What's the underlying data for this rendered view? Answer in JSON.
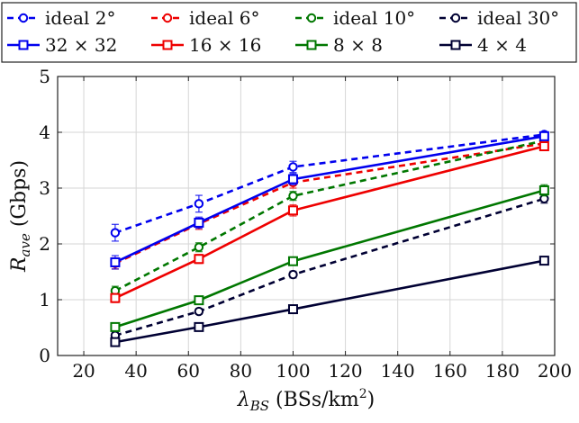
{
  "chart_data": {
    "type": "line",
    "xlabel": {
      "main": "λ",
      "sub": "BS",
      "unit_prefix": "(BSs/km",
      "sup": "2",
      "unit_suffix": ")"
    },
    "ylabel": {
      "main": "R",
      "sub": "ave",
      "unit": "(Gbps)"
    },
    "xlim": [
      10,
      200
    ],
    "ylim": [
      0,
      5
    ],
    "xticks": [
      20,
      40,
      60,
      80,
      100,
      120,
      140,
      160,
      180,
      200
    ],
    "yticks": [
      0,
      1,
      2,
      3,
      4,
      5
    ],
    "grid": true,
    "legend_position": "top",
    "x": [
      32,
      64,
      100,
      196
    ],
    "series": [
      {
        "name": "ideal 2°",
        "color": "#0000ee",
        "style": "dashed",
        "marker": "circle",
        "values": [
          2.2,
          2.72,
          3.38,
          3.96
        ],
        "err": [
          0.15,
          0.15,
          0.1,
          0.05
        ]
      },
      {
        "name": "ideal 6°",
        "color": "#ee0000",
        "style": "dashed",
        "marker": "circle",
        "values": [
          1.65,
          2.36,
          3.1,
          3.8
        ],
        "err": [
          0.1,
          0.1,
          0.1,
          0.05
        ]
      },
      {
        "name": "ideal 10°",
        "color": "#007700",
        "style": "dashed",
        "marker": "circle",
        "values": [
          1.16,
          1.94,
          2.86,
          3.85
        ],
        "err": [
          0.08,
          0.08,
          0.08,
          0.05
        ]
      },
      {
        "name": "ideal 30°",
        "color": "#000033",
        "style": "dashed",
        "marker": "circle",
        "values": [
          0.36,
          0.79,
          1.45,
          2.81
        ],
        "err": [
          0.05,
          0.05,
          0.06,
          0.08
        ]
      },
      {
        "name": "32 × 32",
        "color": "#0000ee",
        "style": "solid",
        "marker": "square",
        "values": [
          1.67,
          2.38,
          3.16,
          3.93
        ],
        "err": [
          0.12,
          0.1,
          0.1,
          0.06
        ]
      },
      {
        "name": "16 × 16",
        "color": "#ee0000",
        "style": "solid",
        "marker": "square",
        "values": [
          1.03,
          1.73,
          2.6,
          3.75
        ],
        "err": [
          0.08,
          0.08,
          0.1,
          0.06
        ]
      },
      {
        "name": "8 × 8",
        "color": "#007700",
        "style": "solid",
        "marker": "square",
        "values": [
          0.51,
          0.99,
          1.69,
          2.96
        ],
        "err": [
          0.05,
          0.05,
          0.05,
          0.1
        ]
      },
      {
        "name": "4 × 4",
        "color": "#000033",
        "style": "solid",
        "marker": "square",
        "values": [
          0.24,
          0.51,
          0.83,
          1.7
        ],
        "err": [
          0.03,
          0.03,
          0.03,
          0.05
        ]
      }
    ]
  }
}
